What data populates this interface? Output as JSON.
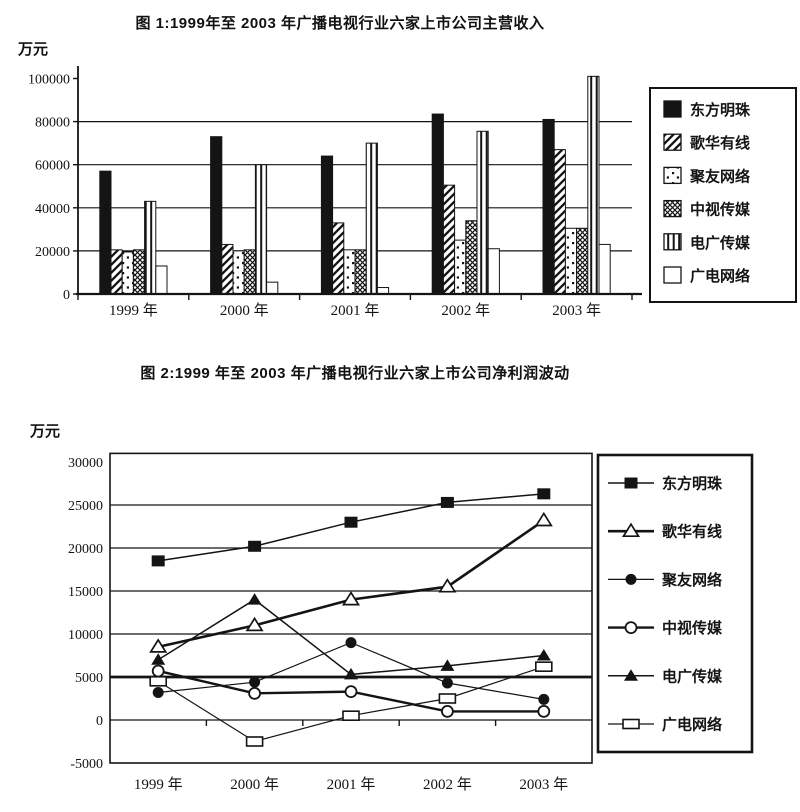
{
  "page": {
    "background": "#ffffff",
    "ink_color": "#141414"
  },
  "chart_data": [
    {
      "type": "bar",
      "title": "图 1:1999年至 2003 年广播电视行业六家上市公司主营收入",
      "unit_label": "万元",
      "categories": [
        "1999 年",
        "2000 年",
        "2001 年",
        "2002 年",
        "2003 年"
      ],
      "series": [
        {
          "name": "东方明珠",
          "pattern": "solid-black",
          "values": [
            57000,
            73000,
            64000,
            83500,
            81000
          ]
        },
        {
          "name": "歌华有线",
          "pattern": "diagonal-hatch",
          "values": [
            20500,
            23000,
            33000,
            50500,
            67000
          ]
        },
        {
          "name": "聚友网络",
          "pattern": "sparse-dots",
          "values": [
            19500,
            20000,
            20500,
            25000,
            30500
          ]
        },
        {
          "name": "中视传媒",
          "pattern": "dense-crosshatch",
          "values": [
            20500,
            20500,
            20500,
            34000,
            30500
          ]
        },
        {
          "name": "电广传媒",
          "pattern": "vertical-stripes",
          "values": [
            43000,
            60000,
            70000,
            75500,
            101000
          ]
        },
        {
          "name": "广电网络",
          "pattern": "plain-white",
          "values": [
            13000,
            5500,
            3000,
            21000,
            23000
          ]
        }
      ],
      "ylim": [
        0,
        100000
      ],
      "yticks": [
        0,
        20000,
        40000,
        60000,
        80000,
        100000
      ],
      "gridlines": [
        20000,
        40000,
        60000,
        80000
      ],
      "grid": true,
      "legend_position": "right"
    },
    {
      "type": "line",
      "title": "图 2:1999 年至 2003 年广播电视行业六家上市公司净利润波动",
      "unit_label": "万元",
      "categories": [
        "1999 年",
        "2000 年",
        "2001 年",
        "2002 年",
        "2003 年"
      ],
      "series": [
        {
          "name": "东方明珠",
          "marker": "filled-square",
          "values": [
            18500,
            20200,
            23000,
            25300,
            26300
          ]
        },
        {
          "name": "歌华有线",
          "marker": "open-triangle",
          "values": [
            8500,
            11000,
            14000,
            15500,
            23200
          ]
        },
        {
          "name": "聚友网络",
          "marker": "filled-circle",
          "values": [
            3200,
            4400,
            9000,
            4300,
            2400
          ]
        },
        {
          "name": "中视传媒",
          "marker": "open-circle",
          "values": [
            5700,
            3100,
            3300,
            1000,
            1000
          ]
        },
        {
          "name": "电广传媒",
          "marker": "filled-triangle",
          "values": [
            7000,
            14000,
            5300,
            6300,
            7500
          ]
        },
        {
          "name": "广电网络",
          "marker": "open-square",
          "values": [
            4500,
            -2500,
            500,
            2500,
            6200
          ]
        }
      ],
      "ylim": [
        -5000,
        31000
      ],
      "yticks": [
        -5000,
        0,
        5000,
        10000,
        15000,
        20000,
        25000,
        30000
      ],
      "gridlines": [
        0,
        5000,
        10000,
        15000,
        20000,
        25000
      ],
      "grid": true,
      "legend_position": "right"
    }
  ]
}
